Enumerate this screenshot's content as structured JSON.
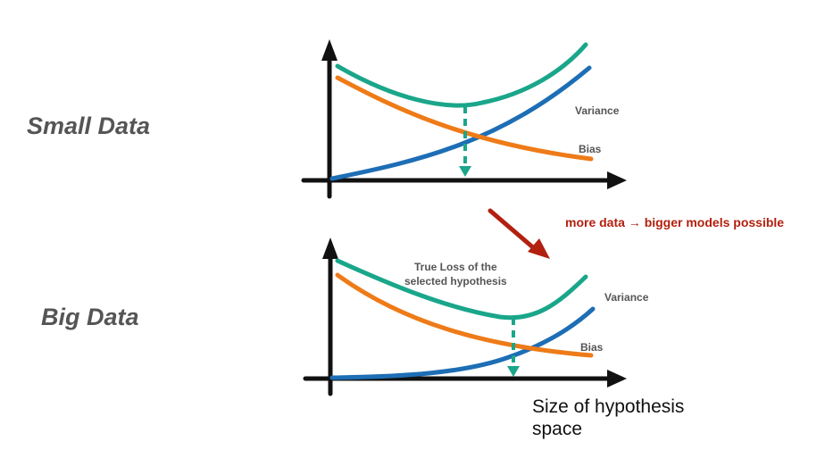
{
  "panels": [
    {
      "label": "Small Data",
      "variance_label": "Variance",
      "bias_label": "Bias",
      "annotation": ""
    },
    {
      "label": "Big Data",
      "variance_label": "Variance",
      "bias_label": "Bias",
      "annotation_line1": "True Loss of the",
      "annotation_line2": "selected hypothesis"
    }
  ],
  "transition_note": "more data  → bigger models possible",
  "x_axis_label_line1": "Size of hypothesis",
  "x_axis_label_line2": "space",
  "colors": {
    "true_loss": "#1aa68a",
    "bias": "#ee7b18",
    "variance": "#1d6eb5",
    "axis": "#111111",
    "note": "#b2200f",
    "arrow": "#b2200f"
  }
}
